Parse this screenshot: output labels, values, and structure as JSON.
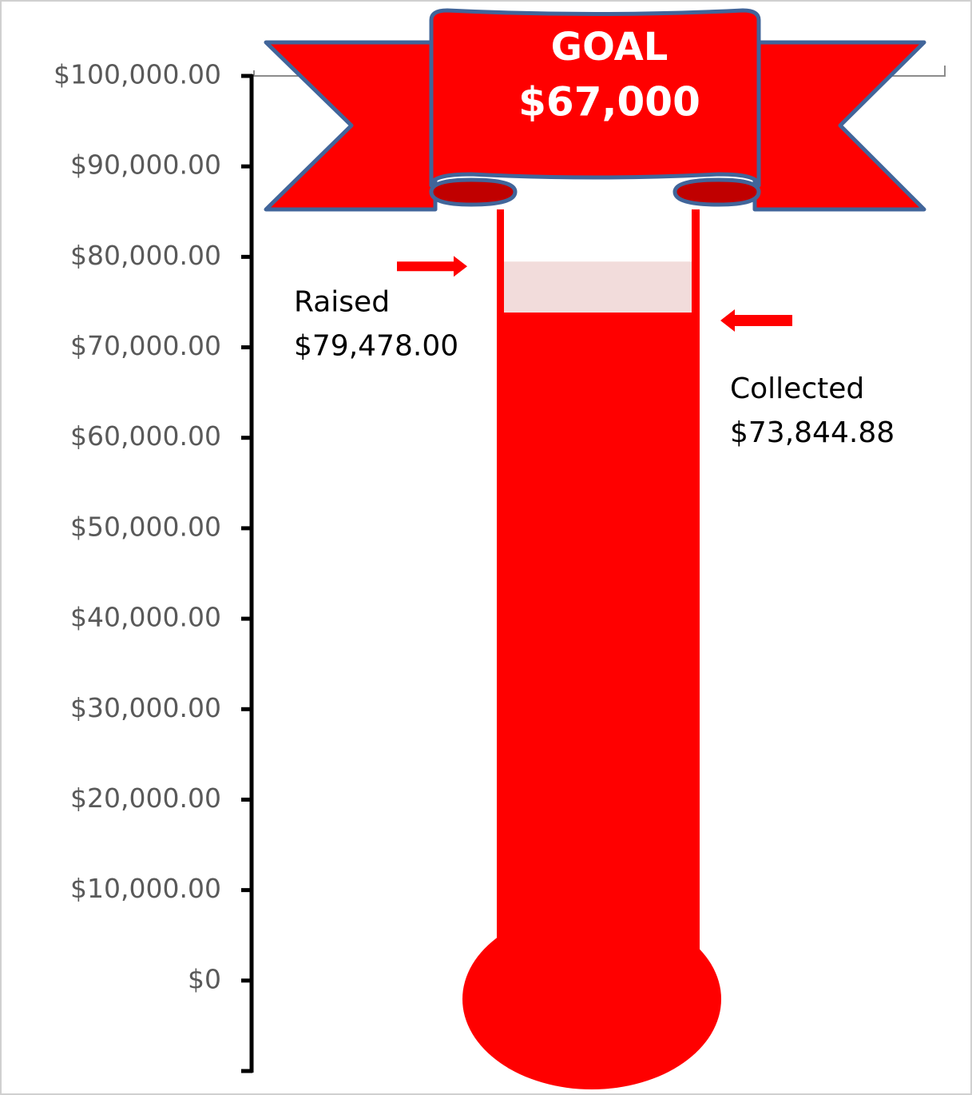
{
  "chart_data": {
    "type": "thermometer",
    "banner": {
      "title": "GOAL",
      "subtitle": "$67,000"
    },
    "series": [
      {
        "name": "Raised",
        "color": "#f2dcdb",
        "values": [
          79478
        ],
        "value_labels": [
          "$79,478.00"
        ]
      },
      {
        "name": "Collected",
        "color": "#ff0000",
        "values": [
          73844.88
        ],
        "value_labels": [
          "$73,844.88"
        ]
      }
    ],
    "ylim": [
      -10000,
      100000
    ],
    "yticks": [
      {
        "value": 0,
        "label": "$0"
      },
      {
        "value": 10000,
        "label": "$10,000.00"
      },
      {
        "value": 20000,
        "label": "$20,000.00"
      },
      {
        "value": 30000,
        "label": "$30,000.00"
      },
      {
        "value": 40000,
        "label": "$40,000.00"
      },
      {
        "value": 50000,
        "label": "$50,000.00"
      },
      {
        "value": 60000,
        "label": "$60,000.00"
      },
      {
        "value": 70000,
        "label": "$70,000.00"
      },
      {
        "value": 80000,
        "label": "$80,000.00"
      },
      {
        "value": 90000,
        "label": "$90,000.00"
      },
      {
        "value": 100000,
        "label": "$100,000.00"
      }
    ]
  }
}
